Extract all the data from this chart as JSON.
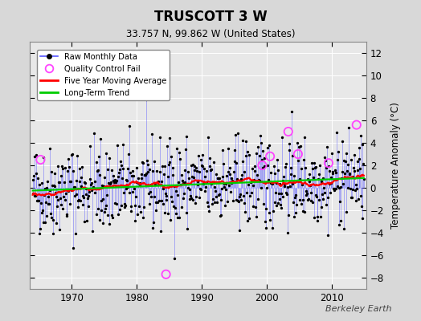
{
  "title": "TRUSCOTT 3 W",
  "subtitle": "33.757 N, 99.862 W (United States)",
  "ylabel": "Temperature Anomaly (°C)",
  "watermark": "Berkeley Earth",
  "year_start": 1964,
  "year_end": 2015,
  "ylim": [
    -9,
    13
  ],
  "yticks": [
    -8,
    -6,
    -4,
    -2,
    0,
    2,
    4,
    6,
    8,
    10,
    12
  ],
  "xticks": [
    1970,
    1980,
    1990,
    2000,
    2010
  ],
  "bg_color": "#d8d8d8",
  "plot_bg_color": "#e8e8e8",
  "raw_line_color": "#5555ff",
  "raw_dot_color": "#000000",
  "qc_fail_color": "#ff44ff",
  "moving_avg_color": "#ff0000",
  "trend_color": "#00cc00",
  "grid_color": "#ffffff",
  "trend_slope": 0.022,
  "trend_intercept": -0.25,
  "noise_std": 2.0,
  "seed": 42,
  "qc_years": [
    1965.2,
    1984.5,
    1999.3,
    2000.5,
    2003.3,
    2004.8,
    2009.5,
    2013.8
  ],
  "qc_vals": [
    2.5,
    -7.7,
    2.0,
    2.8,
    5.0,
    3.0,
    2.2,
    5.6
  ]
}
